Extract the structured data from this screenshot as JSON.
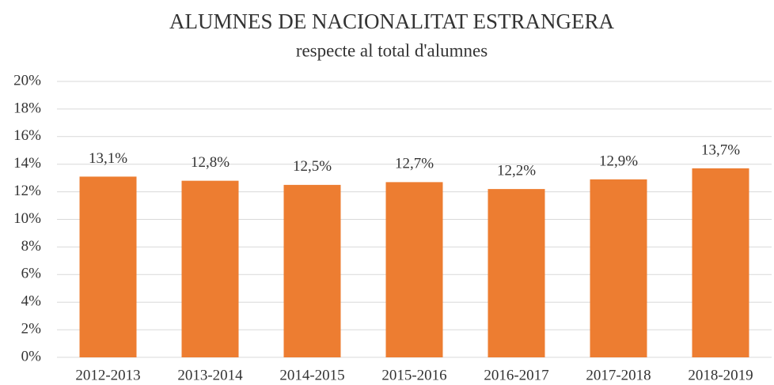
{
  "chart_data": {
    "type": "bar",
    "title": "ALUMNES DE NACIONALITAT ESTRANGERA",
    "subtitle": "respecte al total d'alumnes",
    "categories": [
      "2012-2013",
      "2013-2014",
      "2014-2015",
      "2015-2016",
      "2016-2017",
      "2017-2018",
      "2018-2019"
    ],
    "values": [
      13.1,
      12.8,
      12.5,
      12.7,
      12.2,
      12.9,
      13.7
    ],
    "value_labels": [
      "13,1%",
      "12,8%",
      "12,5%",
      "12,7%",
      "12,2%",
      "12,9%",
      "13,7%"
    ],
    "color": "#ed7d31",
    "ylim": [
      0,
      20
    ],
    "yticks": [
      {
        "value": 0,
        "label": "0%"
      },
      {
        "value": 2,
        "label": "2%"
      },
      {
        "value": 4,
        "label": "4%"
      },
      {
        "value": 6,
        "label": "6%"
      },
      {
        "value": 8,
        "label": "8%"
      },
      {
        "value": 10,
        "label": "10%"
      },
      {
        "value": 12,
        "label": "12%"
      },
      {
        "value": 14,
        "label": "14%"
      },
      {
        "value": 16,
        "label": "16%"
      },
      {
        "value": 18,
        "label": "18%"
      },
      {
        "value": 20,
        "label": "20%"
      }
    ],
    "grid": true
  }
}
